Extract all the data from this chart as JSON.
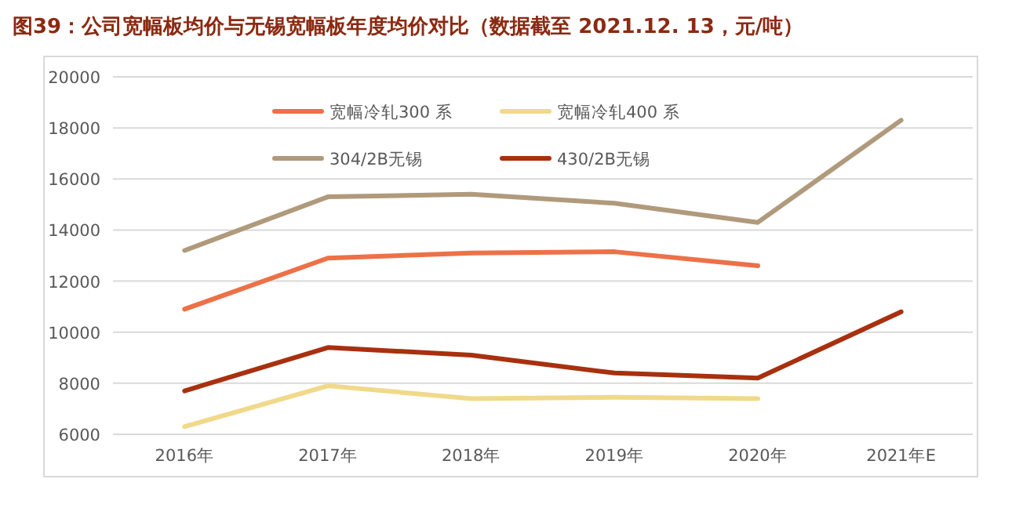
{
  "chart_data": {
    "type": "line",
    "title": "图39：公司宽幅板均价与无锡宽幅板年度均价对比（数据截至 2021.12. 13，元/吨）",
    "categories": [
      "2016年",
      "2017年",
      "2018年",
      "2019年",
      "2020年",
      "2021年E"
    ],
    "series": [
      {
        "name": "宽幅冷轧300 系",
        "color": "#ed7148",
        "values": [
          10900,
          12900,
          13100,
          13150,
          12600,
          null
        ]
      },
      {
        "name": "宽幅冷轧400 系",
        "color": "#f0d98a",
        "values": [
          6300,
          7900,
          7400,
          7450,
          7400,
          null
        ]
      },
      {
        "name": "304/2B无锡",
        "color": "#b09a7c",
        "values": [
          13200,
          15300,
          15400,
          15050,
          14300,
          18300
        ]
      },
      {
        "name": "430/2B无锡",
        "color": "#a8300f",
        "values": [
          7700,
          9400,
          9100,
          8400,
          8200,
          10800
        ]
      }
    ],
    "ylim": [
      6000,
      20000
    ],
    "yticks": [
      6000,
      8000,
      10000,
      12000,
      14000,
      16000,
      18000,
      20000
    ],
    "grid": "y",
    "legend": "top",
    "marker": "none",
    "line_style": "solid"
  }
}
